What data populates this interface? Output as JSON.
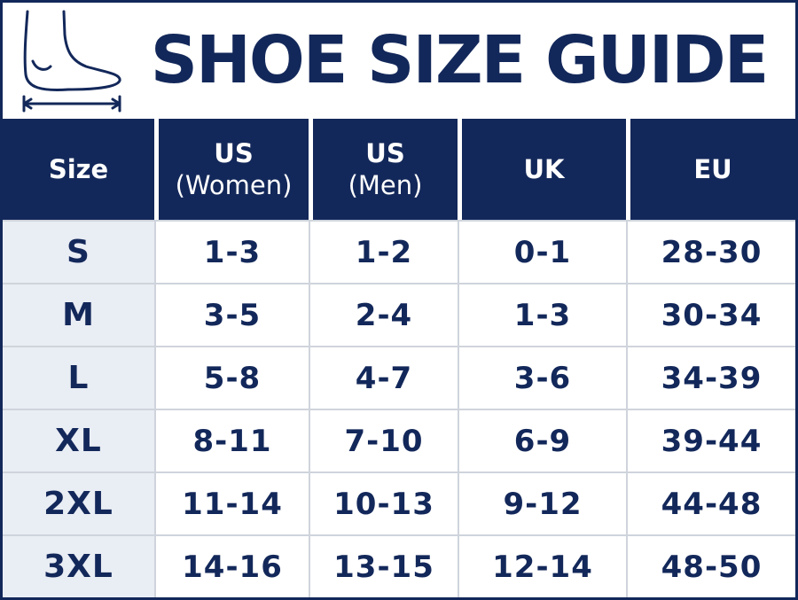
{
  "header": {
    "title": "SHOE SIZE GUIDE"
  },
  "table": {
    "columns": [
      [
        "Size"
      ],
      [
        "US",
        "(Women)"
      ],
      [
        "US",
        "(Men)"
      ],
      [
        "UK"
      ],
      [
        "EU"
      ]
    ],
    "rows": [
      [
        "S",
        "1-3",
        "1-2",
        "0-1",
        "28-30"
      ],
      [
        "M",
        "3-5",
        "2-4",
        "1-3",
        "30-34"
      ],
      [
        "L",
        "5-8",
        "4-7",
        "3-6",
        "34-39"
      ],
      [
        "XL",
        "8-11",
        "7-10",
        "6-9",
        "39-44"
      ],
      [
        "2XL",
        "11-14",
        "10-13",
        "9-12",
        "44-48"
      ],
      [
        "3XL",
        "14-16",
        "13-15",
        "12-14",
        "48-50"
      ]
    ]
  }
}
